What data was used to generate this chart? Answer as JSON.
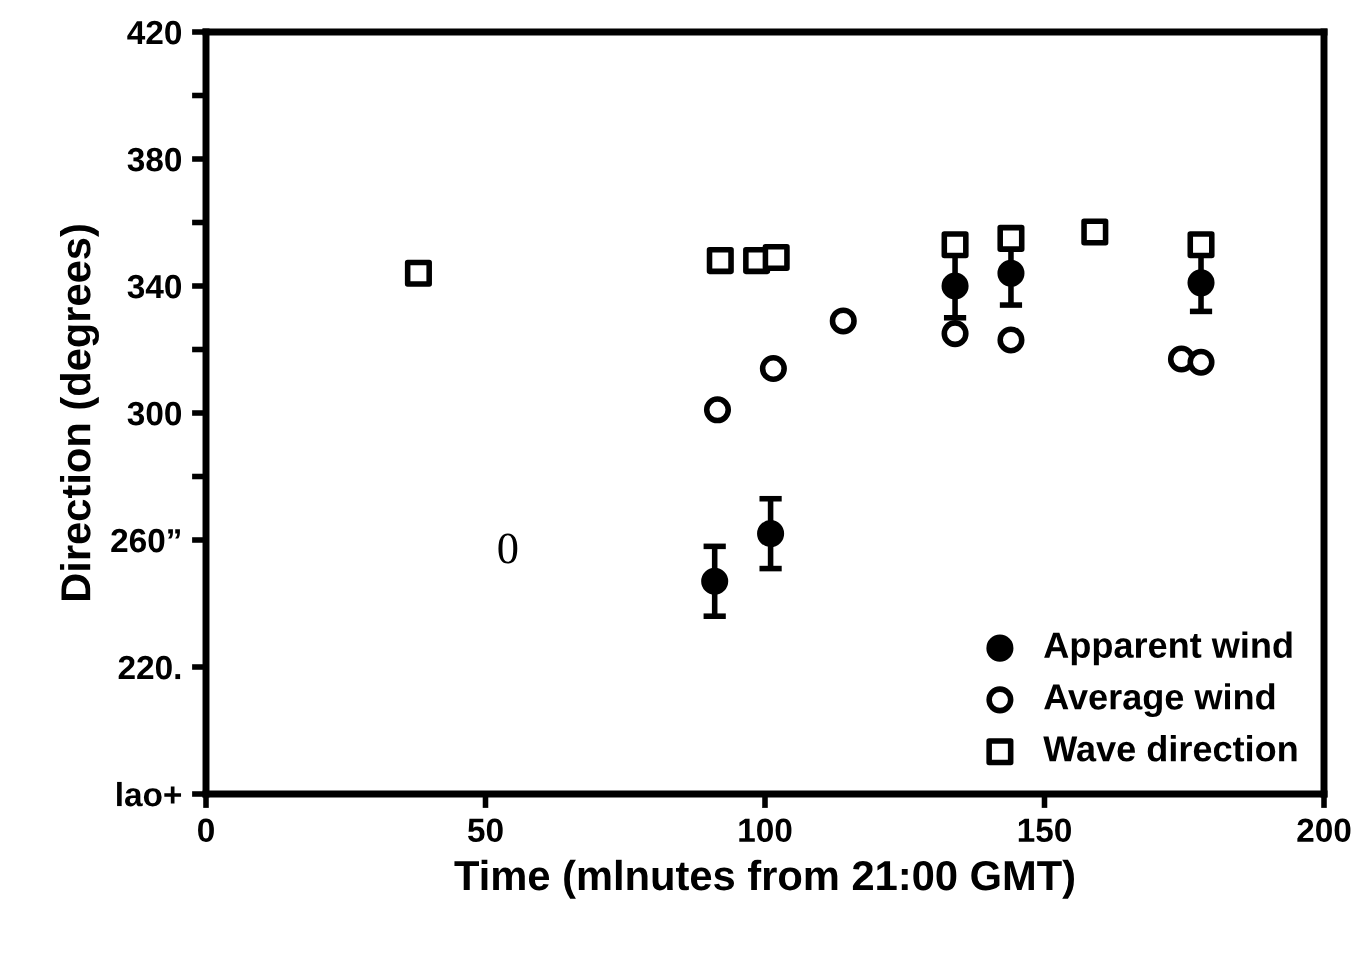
{
  "chart_data": {
    "type": "scatter",
    "xlabel": "Time (mlnutes from 21:00 GMT)",
    "ylabel": "Direction (degrees)",
    "xlim": [
      0,
      200
    ],
    "xticks": [
      0,
      50,
      100,
      150,
      200
    ],
    "ylim": [
      180,
      420
    ],
    "yticks": [
      {
        "value": 180,
        "label": "lao+"
      },
      {
        "value": 220,
        "label": "220."
      },
      {
        "value": 260,
        "label": "260”"
      },
      {
        "value": 280,
        "label": null
      },
      {
        "value": 300,
        "label": "300"
      },
      {
        "value": 320,
        "label": null
      },
      {
        "value": 340,
        "label": "340"
      },
      {
        "value": 360,
        "label": null
      },
      {
        "value": 380,
        "label": "380"
      },
      {
        "value": 400,
        "label": null
      },
      {
        "value": 420,
        "label": "420"
      }
    ],
    "grid": false,
    "legend": "bottom right",
    "annotations": [
      "0"
    ],
    "series": [
      {
        "name": "Apparent wind",
        "color": "#000000",
        "marker": "circle",
        "x": [
          91,
          101,
          134,
          144,
          178
        ],
        "values": [
          247,
          262,
          340,
          344,
          341
        ],
        "errors": [
          11,
          11,
          10,
          10,
          9
        ]
      },
      {
        "name": "Average wind",
        "color": "#000000",
        "marker": "circle",
        "x": [
          91.5,
          101.5,
          114,
          134,
          144,
          174.5,
          178
        ],
        "values": [
          301,
          314,
          329,
          325,
          323,
          317,
          316
        ]
      },
      {
        "name": "Wave direction",
        "color": "#000000",
        "marker": "square",
        "x": [
          38,
          92,
          98.5,
          102,
          134,
          144,
          159,
          178
        ],
        "values": [
          344,
          348,
          348,
          349,
          353,
          355,
          357,
          353
        ]
      }
    ]
  }
}
